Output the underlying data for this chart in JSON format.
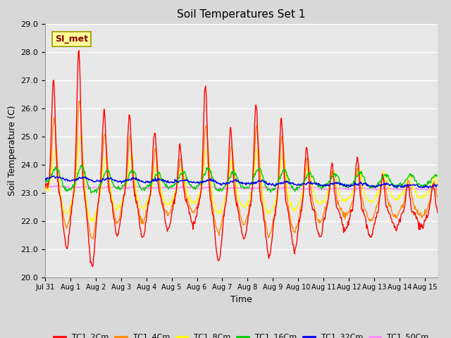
{
  "title": "Soil Temperatures Set 1",
  "xlabel": "Time",
  "ylabel": "Soil Temperature (C)",
  "ylim": [
    20.0,
    29.0
  ],
  "yticks": [
    20.0,
    21.0,
    22.0,
    23.0,
    24.0,
    25.0,
    26.0,
    27.0,
    28.0,
    29.0
  ],
  "xlim_days": [
    0,
    15.5
  ],
  "xtick_labels": [
    "Jul 31",
    "Aug 1",
    "Aug 2",
    "Aug 3",
    "Aug 4",
    "Aug 5",
    "Aug 6",
    "Aug 7",
    "Aug 8",
    "Aug 9",
    "Aug 10",
    "Aug 11",
    "Aug 12",
    "Aug 13",
    "Aug 14",
    "Aug 15"
  ],
  "xtick_positions": [
    0,
    1,
    2,
    3,
    4,
    5,
    6,
    7,
    8,
    9,
    10,
    11,
    12,
    13,
    14,
    15
  ],
  "series_colors": {
    "TC1_2Cm": "#FF0000",
    "TC1_4Cm": "#FF8800",
    "TC1_8Cm": "#FFFF00",
    "TC1_16Cm": "#00CC00",
    "TC1_32Cm": "#0000EE",
    "TC1_50Cm": "#FF88FF"
  },
  "annotation_text": "SI_met",
  "annotation_color": "#880000",
  "annotation_bg": "#FFFF99",
  "fig_facecolor": "#D8D8D8",
  "ax_facecolor": "#E8E8E8",
  "grid_color": "#FFFFFF",
  "linewidth": 1.0
}
